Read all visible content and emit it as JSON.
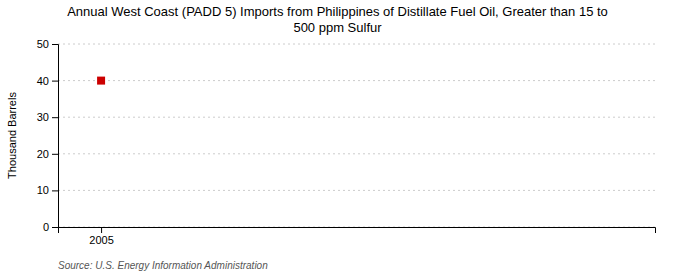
{
  "chart_data": {
    "type": "scatter",
    "title": "Annual West Coast (PADD 5) Imports from Philippines of Distillate Fuel Oil, Greater than 15 to\n500 ppm Sulfur",
    "ylabel": "Thousand Barrels",
    "source": "Source: U.S. Energy Information Administration",
    "x": [
      2005
    ],
    "values": [
      40
    ],
    "xlim": [
      2004.3,
      2014
    ],
    "ylim": [
      0,
      50
    ],
    "xticks": [
      2005
    ],
    "yticks": [
      0,
      10,
      20,
      30,
      40,
      50
    ],
    "color": "#cc0000",
    "marker": "square",
    "grid": true
  }
}
